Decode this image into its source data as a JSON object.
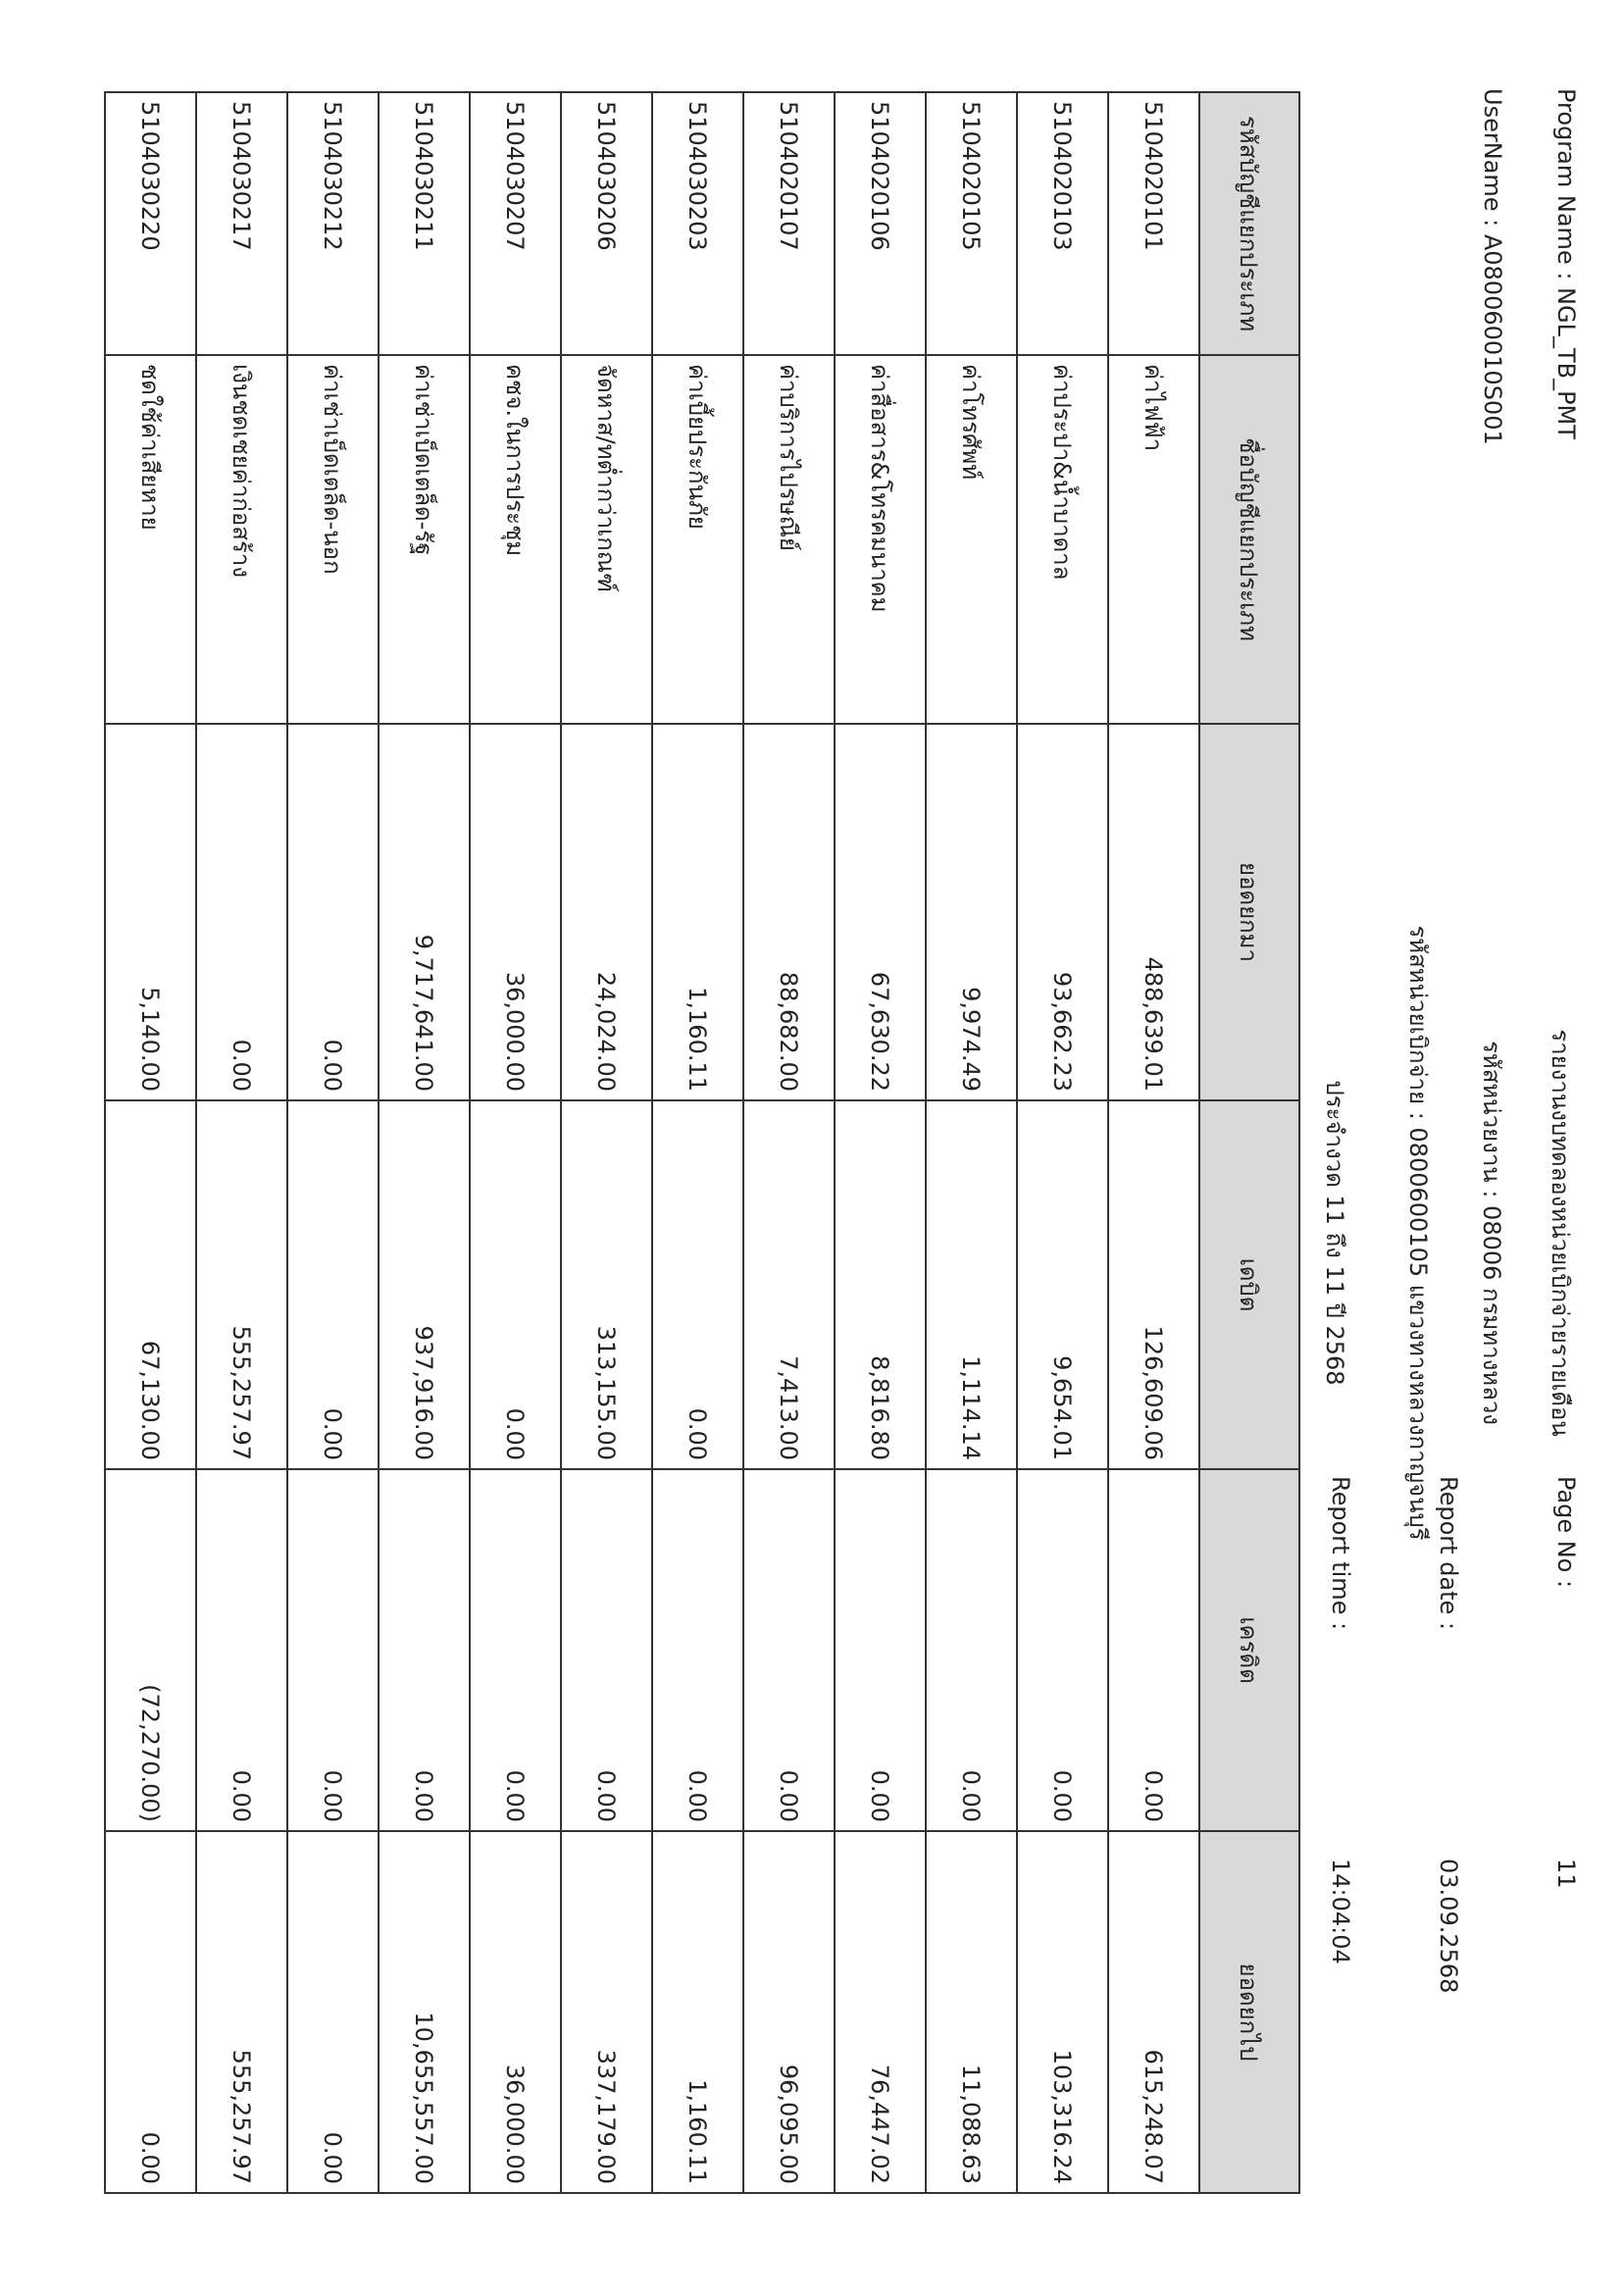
{
  "header": {
    "program_name": "Program Name : NGL_TB_PMT",
    "user_name": "UserName : A080060010S001",
    "title": "รายงานงบทดลองหน่วยเบิกจ่ายรายเดือน",
    "agency": "รหัสหน่วยงาน : 08006 กรมทางหลวง",
    "disbursing_unit": "รหัสหน่วยเบิกจ่าย : 0800600105 แขวงทางหลวงกาญจนบุรี",
    "period": "ประจำงวด 11 ถึง 11 ปี 2568",
    "page_no_label": "Page No :",
    "page_no": "11",
    "report_date_label": "Report date :",
    "report_date": "03.09.2568",
    "report_time_label": "Report time :",
    "report_time": "14:04:04"
  },
  "table": {
    "columns": [
      "รหัสบัญชีแยกประเภท",
      "ชื่อบัญชีแยกประเภท",
      "ยอดยกมา",
      "เดบิต",
      "เครดิต",
      "ยอดยกไป"
    ],
    "rows": [
      [
        "5104020101",
        "ค่าไฟฟ้า",
        "488,639.01",
        "126,609.06",
        "0.00",
        "615,248.07"
      ],
      [
        "5104020103",
        "ค่าประปา&น้ำบาดาล",
        "93,662.23",
        "9,654.01",
        "0.00",
        "103,316.24"
      ],
      [
        "5104020105",
        "ค่าโทรศัพท์",
        "9,974.49",
        "1,114.14",
        "0.00",
        "11,088.63"
      ],
      [
        "5104020106",
        "ค่าสื่อสาร&โทรคมนาคม",
        "67,630.22",
        "8,816.80",
        "0.00",
        "76,447.02"
      ],
      [
        "5104020107",
        "ค่าบริการไปรษณีย์",
        "88,682.00",
        "7,413.00",
        "0.00",
        "96,095.00"
      ],
      [
        "5104030203",
        "ค่าเบี้ยประกันภัย",
        "1,160.11",
        "0.00",
        "0.00",
        "1,160.11"
      ],
      [
        "5104030206",
        "จัดหาส/ทต่ำกว่าเกณฑ์",
        "24,024.00",
        "313,155.00",
        "0.00",
        "337,179.00"
      ],
      [
        "5104030207",
        "คชจ.ในการประชุม",
        "36,000.00",
        "0.00",
        "0.00",
        "36,000.00"
      ],
      [
        "5104030211",
        "ค่าเช่าเบ็ดเตล็ด-รัฐ",
        "9,717,641.00",
        "937,916.00",
        "0.00",
        "10,655,557.00"
      ],
      [
        "5104030212",
        "ค่าเช่าเบ็ดเตล็ด-นอก",
        "0.00",
        "0.00",
        "0.00",
        "0.00"
      ],
      [
        "5104030217",
        "เงินชดเชยค่าก่อสร้าง",
        "0.00",
        "555,257.97",
        "0.00",
        "555,257.97"
      ],
      [
        "5104030220",
        "ชดใช้ค่าเสียหาย",
        "5,140.00",
        "67,130.00",
        "(72,270.00)",
        "0.00"
      ]
    ]
  }
}
